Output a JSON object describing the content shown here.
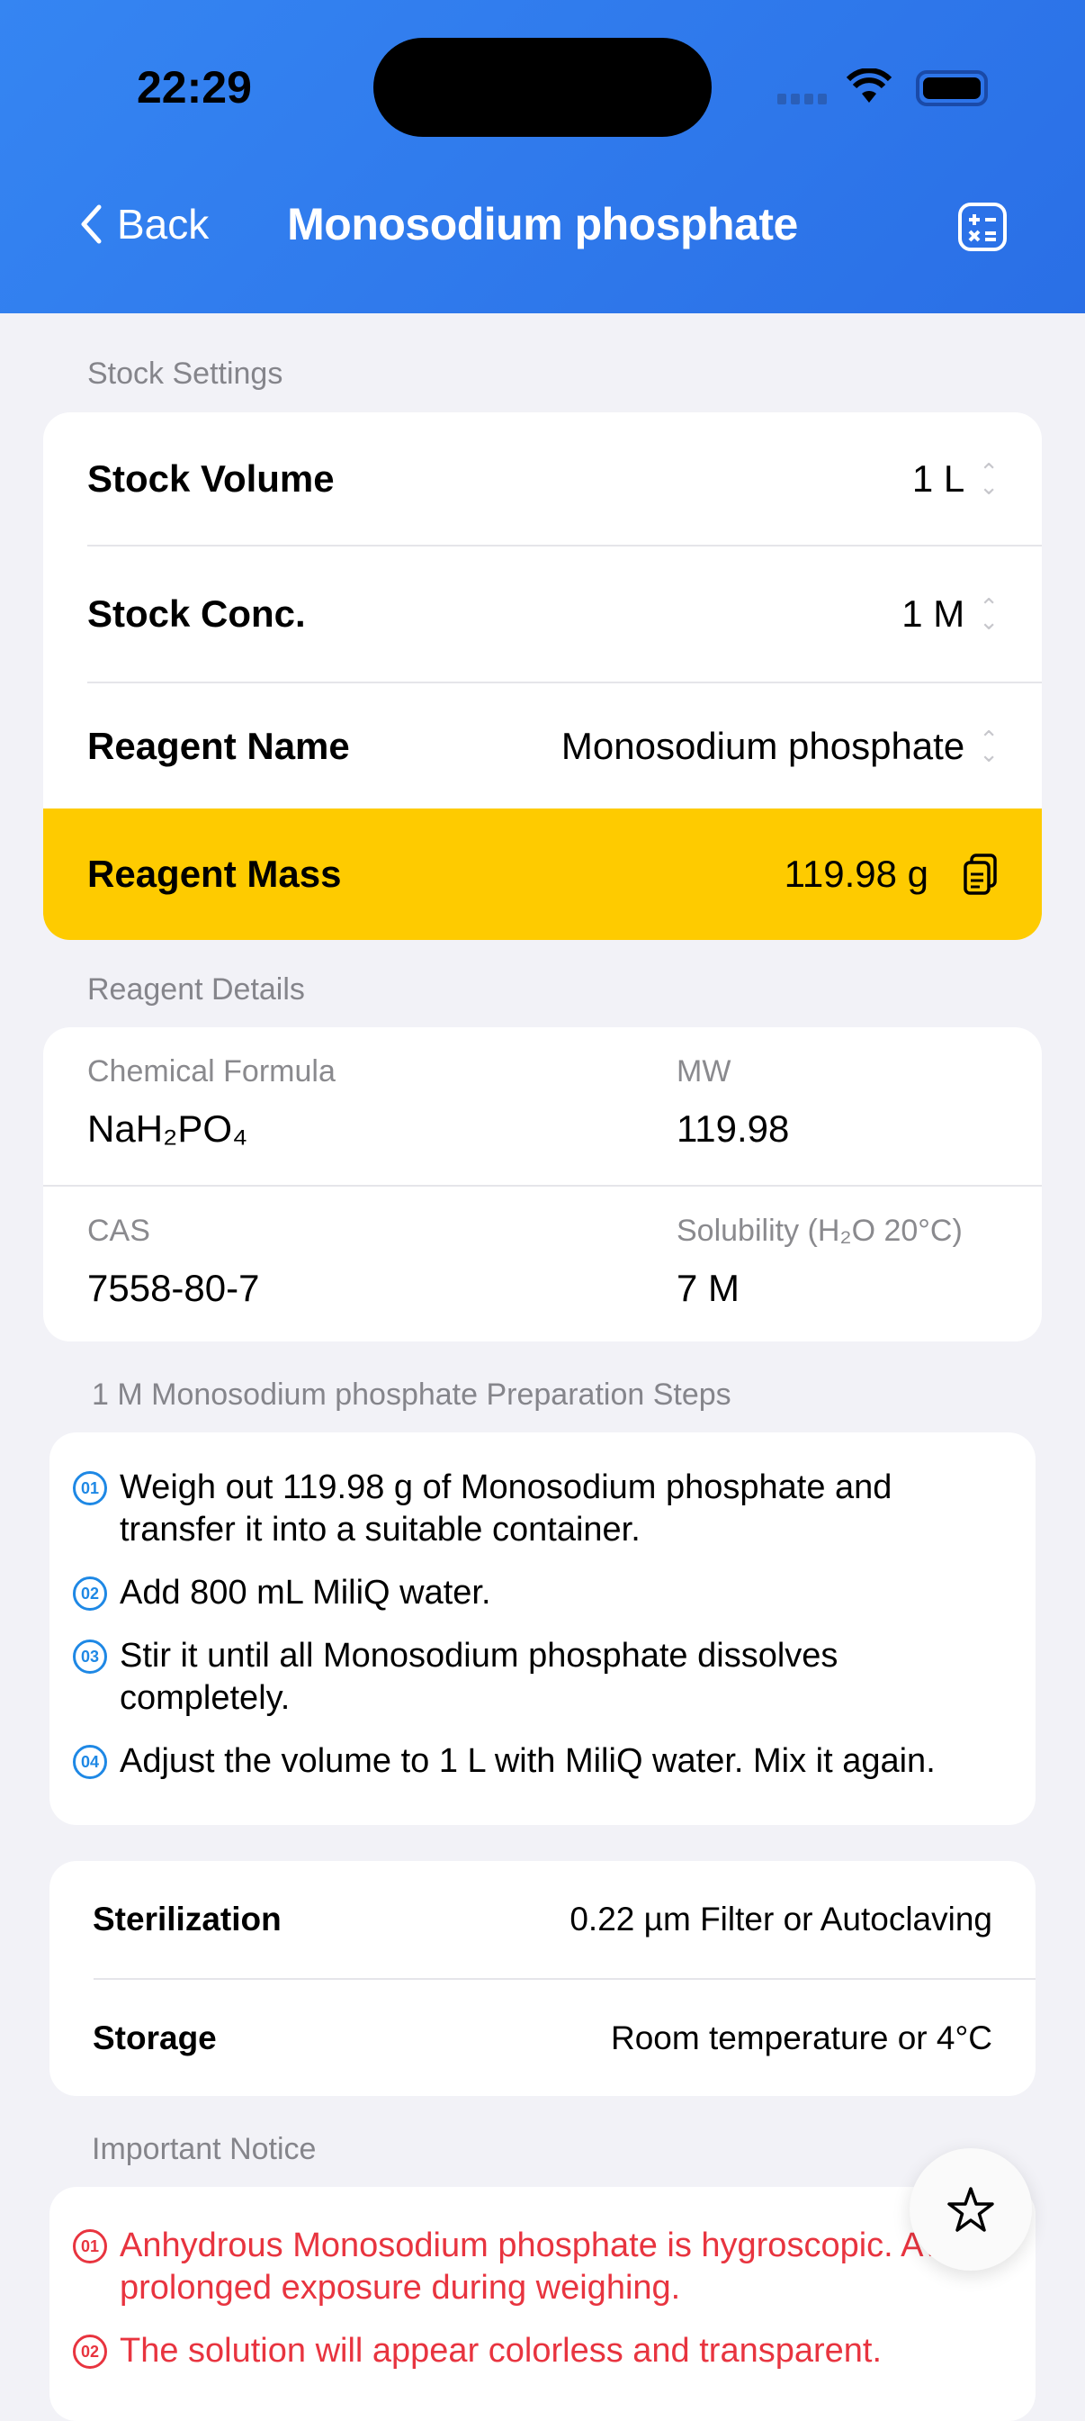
{
  "status": {
    "time": "22:29"
  },
  "nav": {
    "back": "Back",
    "title": "Monosodium phosphate"
  },
  "stock_settings": {
    "label": "Stock Settings",
    "rows": [
      {
        "label": "Stock Volume",
        "value": "1 L"
      },
      {
        "label": "Stock Conc.",
        "value": "1 M"
      },
      {
        "label": "Reagent Name",
        "value": "Monosodium phosphate"
      }
    ],
    "mass": {
      "label": "Reagent Mass",
      "value": "119.98 g"
    }
  },
  "details": {
    "label": "Reagent Details",
    "formula_label": "Chemical Formula",
    "formula": "NaH₂PO₄",
    "mw_label": "MW",
    "mw": "119.98",
    "cas_label": "CAS",
    "cas": "7558-80-7",
    "sol_label": "Solubility (H₂O 20°C)",
    "sol": "7 M"
  },
  "prep": {
    "label": "1 M Monosodium phosphate Preparation Steps",
    "steps": [
      {
        "n": "01",
        "text": "Weigh out 119.98 g of Monosodium phosphate and transfer it into a suitable container."
      },
      {
        "n": "02",
        "text": "Add 800 mL MiliQ water."
      },
      {
        "n": "03",
        "text": "Stir it until all Monosodium phosphate dissolves completely."
      },
      {
        "n": "04",
        "text": "Adjust the volume to 1 L with MiliQ water. Mix it again."
      }
    ]
  },
  "handling": {
    "sterilization_label": "Sterilization",
    "sterilization": "0.22 µm Filter or Autoclaving",
    "storage_label": "Storage",
    "storage": "Room temperature or 4°C"
  },
  "notice": {
    "label": "Important Notice",
    "items": [
      {
        "n": "01",
        "text": "Anhydrous Monosodium phosphate is hygroscopic. Avoid prolonged exposure during weighing."
      },
      {
        "n": "02",
        "text": "The solution will appear colorless and transparent."
      }
    ]
  },
  "colors": {
    "header": "#3585f2",
    "highlight": "#fecb00",
    "step_accent": "#1e88e5",
    "notice": "#e8343f"
  }
}
